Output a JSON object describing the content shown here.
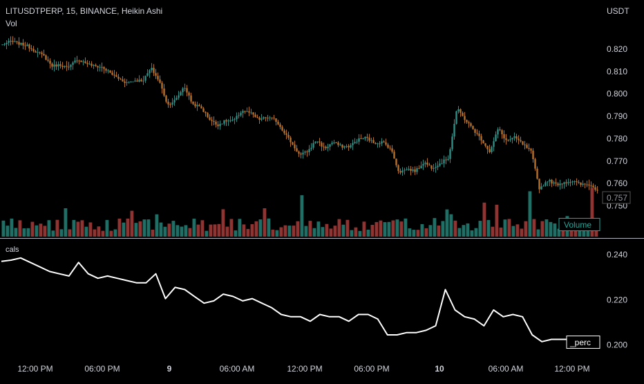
{
  "header": {
    "symbol_line": "LITUSDTPERP, 15, BINANCE, Heikin Ashi",
    "vol_label": "Vol"
  },
  "price_axis": {
    "currency": "USDT",
    "ticks": [
      "0.820",
      "0.810",
      "0.800",
      "0.790",
      "0.780",
      "0.770",
      "0.760",
      "0.750"
    ],
    "last_price": "0.757"
  },
  "volume_badge": "Volume",
  "indicator": {
    "name": "cals",
    "series_label": "_perc",
    "ticks": [
      "0.240",
      "0.220",
      "0.200"
    ]
  },
  "time_axis": {
    "ticks": [
      "12:00 PM",
      "06:00 PM",
      "9",
      "06:00 AM",
      "12:00 PM",
      "06:00 PM",
      "10",
      "06:00 AM",
      "12:00 PM"
    ]
  },
  "colors": {
    "background": "#000000",
    "bull": "#26a69a",
    "bear": "#ef5350",
    "candle_bull": "#2e8e85",
    "candle_bear": "#b7712a",
    "vol_bull": "#1f6f66",
    "vol_bear": "#8e3534",
    "indicator_line": "#ffffff",
    "text": "#d1d4dc",
    "divider": "#b2b5be"
  },
  "chart_data": [
    {
      "type": "candlestick",
      "title": "LITUSDTPERP, 15, BINANCE, Heikin Ashi",
      "y_unit": "USDT",
      "ylim": [
        0.7455,
        0.8265
      ],
      "y_ticks": [
        0.82,
        0.81,
        0.8,
        0.79,
        0.78,
        0.77,
        0.76,
        0.75
      ],
      "x_ticks": [
        "12:00 PM",
        "06:00 PM",
        "9",
        "06:00 AM",
        "12:00 PM",
        "06:00 PM",
        "10",
        "06:00 AM",
        "12:00 PM"
      ],
      "last_price": 0.757,
      "close_path": [
        0.822,
        0.8235,
        0.8225,
        0.8215,
        0.819,
        0.817,
        0.8125,
        0.813,
        0.8115,
        0.8155,
        0.814,
        0.8125,
        0.812,
        0.8095,
        0.807,
        0.805,
        0.806,
        0.806,
        0.8115,
        0.8055,
        0.795,
        0.7975,
        0.8035,
        0.7955,
        0.794,
        0.789,
        0.786,
        0.788,
        0.788,
        0.7925,
        0.7915,
        0.7885,
        0.7895,
        0.7885,
        0.7835,
        0.778,
        0.7725,
        0.7745,
        0.7795,
        0.7755,
        0.7785,
        0.7765,
        0.7765,
        0.7795,
        0.7805,
        0.778,
        0.7785,
        0.7755,
        0.765,
        0.7665,
        0.7655,
        0.7695,
        0.767,
        0.769,
        0.7715,
        0.7935,
        0.7885,
        0.784,
        0.7795,
        0.774,
        0.7845,
        0.779,
        0.7805,
        0.7775,
        0.774,
        0.7575,
        0.7615,
        0.7595,
        0.7605,
        0.761,
        0.7595,
        0.7595,
        0.757
      ],
      "volume": {
        "scale_note": "relative heights, max 1.0",
        "recent": [
          0.18,
          0.3,
          0.15,
          0.22,
          0.28,
          0.18,
          0.12,
          0.2,
          0.15,
          0.33,
          0.42,
          0.28,
          0.18,
          0.25,
          0.12,
          0.22
        ],
        "notable_peaks": [
          0.5,
          0.73,
          0.8,
          0.48,
          0.86
        ]
      }
    },
    {
      "type": "line",
      "name": "_perc",
      "indicator": "cals",
      "ylim": [
        0.1944,
        0.2424
      ],
      "y_ticks": [
        0.24,
        0.22,
        0.2
      ],
      "x_ticks": [
        "12:00 PM",
        "06:00 PM",
        "9",
        "06:00 AM",
        "12:00 PM",
        "06:00 PM",
        "10",
        "06:00 AM",
        "12:00 PM"
      ],
      "values": [
        0.237,
        0.2375,
        0.2385,
        0.2365,
        0.2345,
        0.2325,
        0.2315,
        0.2305,
        0.2365,
        0.2315,
        0.2295,
        0.2305,
        0.2295,
        0.2285,
        0.2275,
        0.2275,
        0.2315,
        0.2205,
        0.2255,
        0.2245,
        0.2215,
        0.2185,
        0.2195,
        0.2225,
        0.2215,
        0.2195,
        0.2205,
        0.2185,
        0.2165,
        0.2135,
        0.2125,
        0.2125,
        0.2105,
        0.2135,
        0.2125,
        0.2125,
        0.2105,
        0.2135,
        0.2135,
        0.2115,
        0.2045,
        0.2045,
        0.2055,
        0.2055,
        0.2065,
        0.2085,
        0.2245,
        0.2155,
        0.2125,
        0.2115,
        0.2085,
        0.2155,
        0.2125,
        0.2135,
        0.2125,
        0.2045,
        0.2015,
        0.2025,
        0.2025,
        0.2025,
        0.2035,
        0.2025
      ]
    }
  ]
}
